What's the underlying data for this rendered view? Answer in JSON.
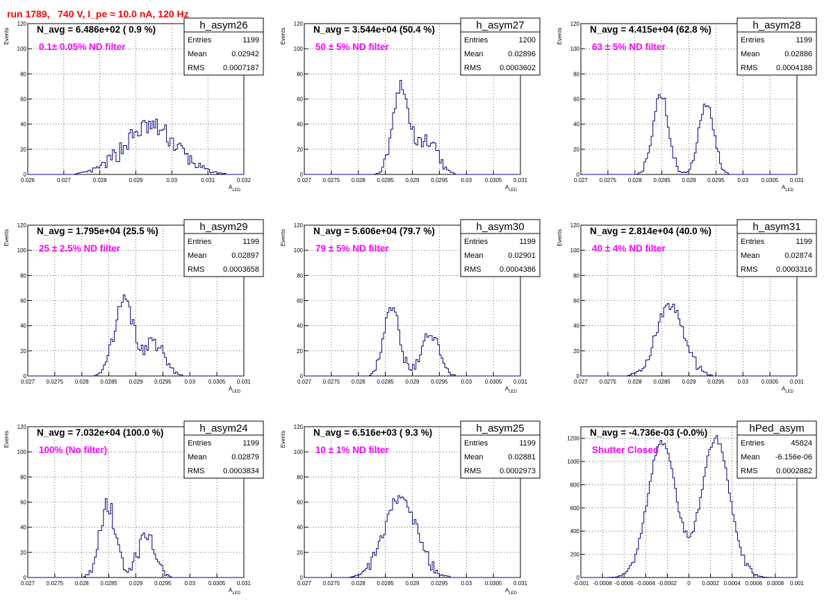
{
  "run_title": "run 1789,   740 V, I_pe ≈ 10.0 nA, 120 Hz",
  "colors": {
    "title": "#ff0000",
    "filter_text": "#ff00ff",
    "histogram_line": "#000080"
  },
  "stat_labels": {
    "entries": "Entries",
    "mean": "Mean",
    "rms": "RMS"
  },
  "chart_data": [
    {
      "type": "bar",
      "name": "h_asym26",
      "navg": "N_avg = 6.486e+02 ( 0.9 %)",
      "filter": "0.1± 0.05% ND filter",
      "stats": {
        "entries": "1199",
        "mean": "0.02942",
        "rms": "0.0007187"
      },
      "ylabel": "Events",
      "xlabel": "A",
      "xlabel_sub": "LED",
      "xlim": [
        0.026,
        0.032
      ],
      "ylim": [
        0,
        120
      ],
      "xticks": [
        "0.026",
        "0.027",
        "0.028",
        "0.029",
        "0.03",
        "0.031",
        "0.032"
      ],
      "yticks": [
        "0",
        "20",
        "40",
        "60",
        "80",
        "100",
        "120"
      ],
      "grid": true,
      "peaks": [
        [
          0.0294,
          0.00072,
          38
        ]
      ],
      "noise": 8
    },
    {
      "type": "bar",
      "name": "h_asym27",
      "navg": "N_avg = 3.544e+04 (50.4 %)",
      "filter": "50 ± 5% ND filter",
      "stats": {
        "entries": "1200",
        "mean": "0.02896",
        "rms": "0.0003602"
      },
      "ylabel": "Events",
      "xlabel": "A",
      "xlabel_sub": "LED",
      "xlim": [
        0.027,
        0.031
      ],
      "ylim": [
        0,
        120
      ],
      "xticks": [
        "0.027",
        "0.0275",
        "0.028",
        "0.0285",
        "0.029",
        "0.0295",
        "0.03",
        "0.0305",
        "0.031"
      ],
      "yticks": [
        "0",
        "20",
        "40",
        "60",
        "80",
        "100",
        "120"
      ],
      "grid": true,
      "peaks": [
        [
          0.02878,
          0.00015,
          68
        ],
        [
          0.02925,
          0.0002,
          27
        ]
      ],
      "noise": 6
    },
    {
      "type": "bar",
      "name": "h_asym28",
      "navg": "N_avg = 4.415e+04 (62.8 %)",
      "filter": "63 ± 5% ND filter",
      "stats": {
        "entries": "1199",
        "mean": "0.02886",
        "rms": "0.0004188"
      },
      "ylabel": "Events",
      "xlabel": "A",
      "xlabel_sub": "LED",
      "xlim": [
        0.027,
        0.031
      ],
      "ylim": [
        0,
        120
      ],
      "xticks": [
        "0.027",
        "0.0275",
        "0.028",
        "0.0285",
        "0.029",
        "0.0295",
        "0.03",
        "0.0305",
        "0.031"
      ],
      "yticks": [
        "0",
        "20",
        "40",
        "60",
        "80",
        "100",
        "120"
      ],
      "grid": true,
      "peaks": [
        [
          0.02848,
          0.00014,
          65
        ],
        [
          0.02932,
          0.00014,
          55
        ]
      ],
      "noise": 4
    },
    {
      "type": "bar",
      "name": "h_asym29",
      "navg": "N_avg = 1.795e+04 (25.5 %)",
      "filter": "25 ± 2.5% ND filter",
      "stats": {
        "entries": "1199",
        "mean": "0.02897",
        "rms": "0.0003658"
      },
      "ylabel": "Events",
      "xlabel": "A",
      "xlabel_sub": "LED",
      "xlim": [
        0.027,
        0.031
      ],
      "ylim": [
        0,
        120
      ],
      "xticks": [
        "0.027",
        "0.0275",
        "0.028",
        "0.0285",
        "0.029",
        "0.0295",
        "0.03",
        "0.0305",
        "0.031"
      ],
      "yticks": [
        "0",
        "20",
        "40",
        "60",
        "80",
        "100",
        "120"
      ],
      "grid": true,
      "peaks": [
        [
          0.02878,
          0.00018,
          60
        ],
        [
          0.02935,
          0.00018,
          26
        ]
      ],
      "noise": 6
    },
    {
      "type": "bar",
      "name": "h_asym30",
      "navg": "N_avg = 5.606e+04 (79.7 %)",
      "filter": "79 ± 5% ND filter",
      "stats": {
        "entries": "1199",
        "mean": "0.02901",
        "rms": "0.0004386"
      },
      "ylabel": "Events",
      "xlabel": "A",
      "xlabel_sub": "LED",
      "xlim": [
        0.027,
        0.031
      ],
      "ylim": [
        0,
        120
      ],
      "xticks": [
        "0.027",
        "0.0275",
        "0.028",
        "0.0285",
        "0.029",
        "0.0295",
        "0.03",
        "0.0305",
        "0.031"
      ],
      "yticks": [
        "0",
        "20",
        "40",
        "60",
        "80",
        "100",
        "120"
      ],
      "grid": true,
      "peaks": [
        [
          0.02862,
          0.00014,
          55
        ],
        [
          0.02932,
          0.00016,
          36
        ]
      ],
      "noise": 5
    },
    {
      "type": "bar",
      "name": "h_asym31",
      "navg": "N_avg = 2.814e+04 (40.0 %)",
      "filter": "40 ± 4% ND filter",
      "stats": {
        "entries": "1199",
        "mean": "0.02874",
        "rms": "0.0003316"
      },
      "ylabel": "Events",
      "xlabel": "A",
      "xlabel_sub": "LED",
      "xlim": [
        0.027,
        0.031
      ],
      "ylim": [
        0,
        120
      ],
      "xticks": [
        "0.027",
        "0.0275",
        "0.028",
        "0.0285",
        "0.029",
        "0.0295",
        "0.03",
        "0.0305",
        "0.031"
      ],
      "yticks": [
        "0",
        "20",
        "40",
        "60",
        "80",
        "100",
        "120"
      ],
      "grid": true,
      "peaks": [
        [
          0.02865,
          0.00026,
          55
        ]
      ],
      "noise": 5
    },
    {
      "type": "bar",
      "name": "h_asym24",
      "navg": "N_avg = 7.032e+04 (100.0 %)",
      "filter": "100% (No filter)",
      "stats": {
        "entries": "1199",
        "mean": "0.02879",
        "rms": "0.0003834"
      },
      "ylabel": "Events",
      "xlabel": "A",
      "xlabel_sub": "LED",
      "xlim": [
        0.027,
        0.031
      ],
      "ylim": [
        0,
        120
      ],
      "xticks": [
        "0.027",
        "0.0275",
        "0.028",
        "0.0285",
        "0.029",
        "0.0295",
        "0.03",
        "0.0305",
        "0.031"
      ],
      "yticks": [
        "0",
        "20",
        "40",
        "60",
        "80",
        "100",
        "120"
      ],
      "grid": true,
      "peaks": [
        [
          0.02848,
          0.00015,
          58
        ],
        [
          0.0292,
          0.00016,
          32
        ]
      ],
      "noise": 7
    },
    {
      "type": "bar",
      "name": "h_asym25",
      "navg": "N_avg = 6.516e+03 ( 9.3 %)",
      "filter": "10 ± 1% ND filter",
      "stats": {
        "entries": "1199",
        "mean": "0.02881",
        "rms": "0.0002973"
      },
      "ylabel": "Events",
      "xlabel": "A",
      "xlabel_sub": "LED",
      "xlim": [
        0.027,
        0.031
      ],
      "ylim": [
        0,
        120
      ],
      "xticks": [
        "0.027",
        "0.0275",
        "0.028",
        "0.0285",
        "0.029",
        "0.0295",
        "0.03",
        "0.0305",
        "0.031"
      ],
      "yticks": [
        "0",
        "20",
        "40",
        "60",
        "80",
        "100",
        "120"
      ],
      "grid": true,
      "peaks": [
        [
          0.02878,
          0.0003,
          64
        ]
      ],
      "noise": 5
    },
    {
      "type": "bar",
      "name": "hPed_asym",
      "navg": "N_avg = -4.736e-03 (-0.0%)",
      "filter": "Shutter Closed",
      "stats": {
        "entries": "45824",
        "mean": "-6.156e-06",
        "rms": "0.0002882"
      },
      "ylabel": "",
      "xlabel": "",
      "xlabel_sub": "",
      "xlim": [
        -0.001,
        0.001
      ],
      "ylim": [
        0,
        1300
      ],
      "xticks": [
        "-0.001",
        "-0.0008",
        "-0.0006",
        "-0.0004",
        "-0.0002",
        "0",
        "0.0002",
        "0.0004",
        "0.0006",
        "0.0008",
        "0.001"
      ],
      "yticks": [
        "0",
        "200",
        "400",
        "600",
        "800",
        "1000",
        "1200"
      ],
      "grid": true,
      "peaks": [
        [
          -0.00025,
          0.00013,
          1160
        ],
        [
          0.00025,
          0.00013,
          1200
        ]
      ],
      "noise": 30
    }
  ]
}
